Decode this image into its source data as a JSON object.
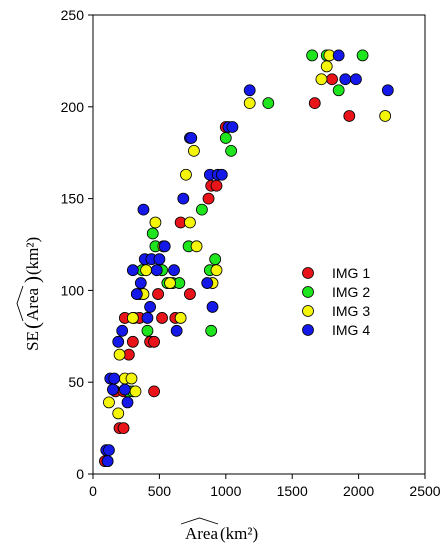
{
  "chart_data": {
    "type": "scatter",
    "xlabel": "Area",
    "xlabel_unit": "(km²)",
    "ylabel_prefix": "SE",
    "ylabel_inner": "Area",
    "ylabel_unit": "(km²)",
    "xlim": [
      0,
      2500
    ],
    "ylim": [
      0,
      250
    ],
    "xticks": [
      "0",
      "500",
      "1000",
      "1500",
      "2000",
      "2500"
    ],
    "yticks": [
      "0",
      "50",
      "100",
      "150",
      "200",
      "250"
    ],
    "grid": false,
    "legend_position": "center-right",
    "series": [
      {
        "name": "IMG 1",
        "color": "#e8141a",
        "points": [
          [
            90,
            7
          ],
          [
            110,
            7
          ],
          [
            200,
            25
          ],
          [
            230,
            25
          ],
          [
            170,
            45
          ],
          [
            230,
            45
          ],
          [
            270,
            65
          ],
          [
            300,
            72
          ],
          [
            240,
            85
          ],
          [
            310,
            85
          ],
          [
            350,
            85
          ],
          [
            430,
            72
          ],
          [
            460,
            72
          ],
          [
            460,
            45
          ],
          [
            490,
            98
          ],
          [
            520,
            85
          ],
          [
            620,
            85
          ],
          [
            660,
            137
          ],
          [
            730,
            98
          ],
          [
            870,
            150
          ],
          [
            890,
            157
          ],
          [
            930,
            157
          ],
          [
            1000,
            189
          ],
          [
            1670,
            202
          ],
          [
            1800,
            215
          ],
          [
            1930,
            195
          ]
        ]
      },
      {
        "name": "IMG 2",
        "color": "#1ee51e",
        "points": [
          [
            270,
            45
          ],
          [
            300,
            45
          ],
          [
            350,
            98
          ],
          [
            370,
            111
          ],
          [
            410,
            78
          ],
          [
            450,
            131
          ],
          [
            470,
            124
          ],
          [
            520,
            111
          ],
          [
            560,
            104
          ],
          [
            600,
            104
          ],
          [
            650,
            104
          ],
          [
            720,
            124
          ],
          [
            820,
            144
          ],
          [
            880,
            111
          ],
          [
            890,
            78
          ],
          [
            920,
            117
          ],
          [
            1000,
            183
          ],
          [
            1040,
            176
          ],
          [
            1320,
            202
          ],
          [
            1650,
            228
          ],
          [
            1760,
            228
          ],
          [
            1850,
            209
          ],
          [
            2030,
            228
          ]
        ]
      },
      {
        "name": "IMG 3",
        "color": "#f5f50a",
        "points": [
          [
            120,
            39
          ],
          [
            190,
            33
          ],
          [
            200,
            65
          ],
          [
            240,
            52
          ],
          [
            290,
            52
          ],
          [
            300,
            85
          ],
          [
            320,
            45
          ],
          [
            380,
            98
          ],
          [
            400,
            111
          ],
          [
            470,
            137
          ],
          [
            530,
            124
          ],
          [
            580,
            104
          ],
          [
            660,
            85
          ],
          [
            700,
            163
          ],
          [
            730,
            137
          ],
          [
            760,
            176
          ],
          [
            780,
            124
          ],
          [
            900,
            104
          ],
          [
            930,
            111
          ],
          [
            1180,
            202
          ],
          [
            1720,
            215
          ],
          [
            1760,
            222
          ],
          [
            1780,
            228
          ],
          [
            2200,
            195
          ]
        ]
      },
      {
        "name": "IMG 4",
        "color": "#1418e8",
        "points": [
          [
            100,
            13
          ],
          [
            120,
            13
          ],
          [
            110,
            7
          ],
          [
            130,
            52
          ],
          [
            150,
            46
          ],
          [
            160,
            52
          ],
          [
            190,
            72
          ],
          [
            220,
            78
          ],
          [
            240,
            46
          ],
          [
            260,
            39
          ],
          [
            300,
            111
          ],
          [
            330,
            98
          ],
          [
            360,
            104
          ],
          [
            380,
            144
          ],
          [
            390,
            117
          ],
          [
            410,
            85
          ],
          [
            430,
            91
          ],
          [
            440,
            117
          ],
          [
            480,
            111
          ],
          [
            500,
            117
          ],
          [
            540,
            124
          ],
          [
            610,
            111
          ],
          [
            630,
            78
          ],
          [
            680,
            150
          ],
          [
            730,
            183
          ],
          [
            740,
            183
          ],
          [
            860,
            104
          ],
          [
            880,
            163
          ],
          [
            900,
            91
          ],
          [
            940,
            163
          ],
          [
            970,
            163
          ],
          [
            1020,
            189
          ],
          [
            1050,
            189
          ],
          [
            1180,
            209
          ],
          [
            1850,
            228
          ],
          [
            1900,
            215
          ],
          [
            1980,
            215
          ],
          [
            2220,
            209
          ]
        ]
      }
    ]
  }
}
